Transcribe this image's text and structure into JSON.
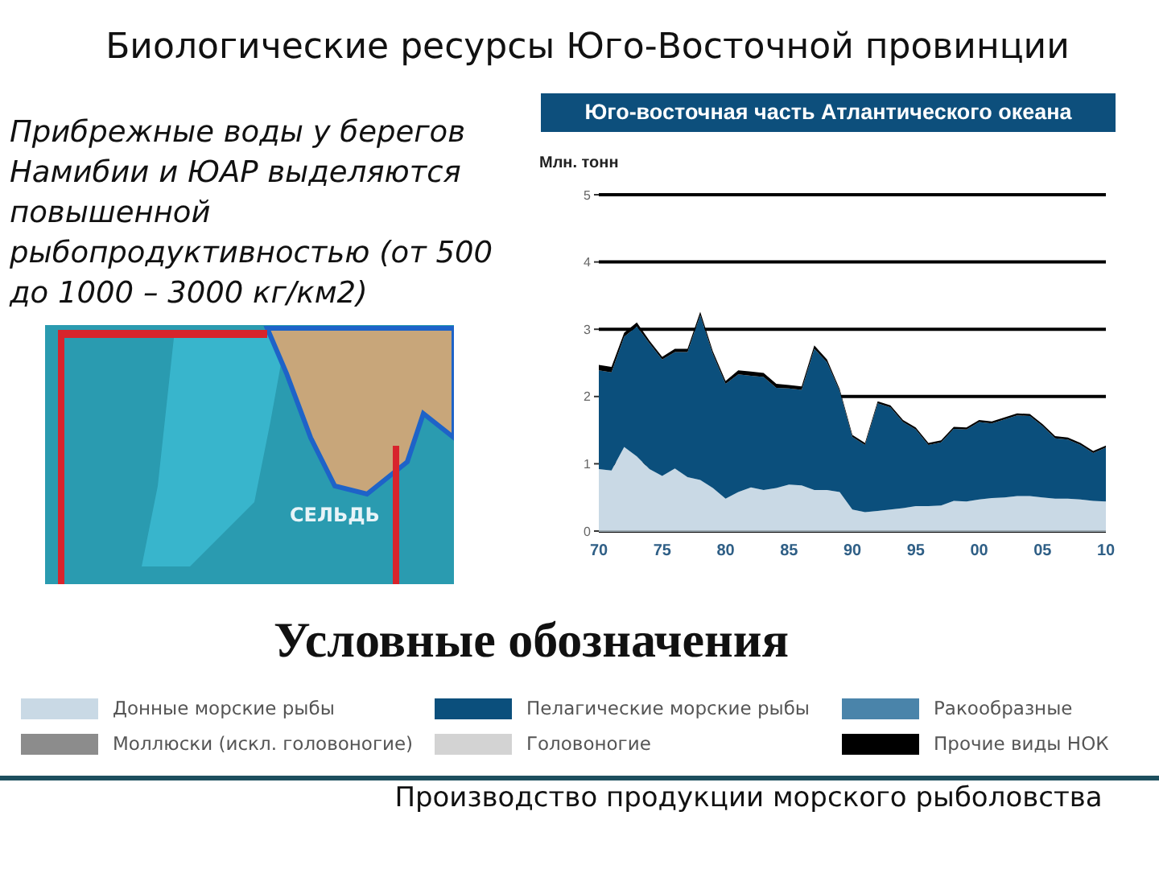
{
  "chart_data": {
    "type": "area",
    "stacked": true,
    "title": "Биологические ресурсы Юго-Восточной провинции",
    "subtitle": "Юго-восточная часть Атлантического океана",
    "ylabel": "Млн. тонн",
    "legend_title": "Условные обозначения",
    "annotations": [
      "Прибрежные воды у берегов Намибии и ЮАР выделяются повышенной рыбопродуктивностью (от 500 до 1000 – 3000 кг/км2)",
      "СЕЛЬДЬ",
      "Производство продукции морского рыболовства"
    ],
    "x": [
      1970,
      1971,
      1972,
      1973,
      1974,
      1975,
      1976,
      1977,
      1978,
      1979,
      1980,
      1981,
      1982,
      1983,
      1984,
      1985,
      1986,
      1987,
      1988,
      1989,
      1990,
      1991,
      1992,
      1993,
      1994,
      1995,
      1996,
      1997,
      1998,
      1999,
      2000,
      2001,
      2002,
      2003,
      2004,
      2005,
      2006,
      2007,
      2008,
      2009,
      2010
    ],
    "series": [
      {
        "name": "Донные морские рыбы",
        "color": "#c9d9e5",
        "values": [
          0.92,
          0.9,
          1.25,
          1.11,
          0.92,
          0.82,
          0.93,
          0.8,
          0.76,
          0.64,
          0.48,
          0.58,
          0.65,
          0.61,
          0.64,
          0.69,
          0.68,
          0.61,
          0.61,
          0.58,
          0.32,
          0.28,
          0.3,
          0.32,
          0.34,
          0.37,
          0.37,
          0.38,
          0.45,
          0.44,
          0.47,
          0.49,
          0.5,
          0.52,
          0.52,
          0.5,
          0.48,
          0.48,
          0.47,
          0.45,
          0.44
        ]
      },
      {
        "name": "Пелагические морские рыбы",
        "color": "#0b4f7c",
        "values": [
          1.47,
          1.46,
          1.64,
          1.93,
          1.87,
          1.73,
          1.73,
          1.86,
          2.45,
          1.99,
          1.71,
          1.75,
          1.66,
          1.68,
          1.49,
          1.43,
          1.42,
          2.1,
          1.9,
          1.5,
          1.08,
          1.0,
          1.6,
          1.52,
          1.28,
          1.14,
          0.91,
          0.94,
          1.07,
          1.07,
          1.15,
          1.11,
          1.16,
          1.2,
          1.19,
          1.06,
          0.9,
          0.88,
          0.81,
          0.71,
          0.8
        ]
      },
      {
        "name": "Ракообразные",
        "color": "#4a84aa",
        "values": [
          null,
          null,
          null,
          null,
          null,
          null,
          null,
          null,
          null,
          null,
          null,
          null,
          null,
          null,
          null,
          null,
          null,
          null,
          null,
          null,
          null,
          null,
          null,
          null,
          null,
          null,
          null,
          null,
          null,
          null,
          null,
          null,
          null,
          null,
          null,
          null,
          null,
          null,
          null,
          null,
          null
        ]
      },
      {
        "name": "Моллюски (искл. головоногие)",
        "color": "#8c8c8c",
        "values": [
          null,
          null,
          null,
          null,
          null,
          null,
          null,
          null,
          null,
          null,
          null,
          null,
          null,
          null,
          null,
          null,
          null,
          null,
          null,
          null,
          null,
          null,
          null,
          null,
          null,
          null,
          null,
          null,
          null,
          null,
          null,
          null,
          null,
          null,
          null,
          null,
          null,
          null,
          null,
          null,
          null
        ]
      },
      {
        "name": "Головоногие",
        "color": "#d3d3d3",
        "values": [
          null,
          null,
          null,
          null,
          null,
          null,
          null,
          null,
          null,
          null,
          null,
          null,
          null,
          null,
          null,
          null,
          null,
          null,
          null,
          null,
          null,
          null,
          null,
          null,
          null,
          null,
          null,
          null,
          null,
          null,
          null,
          null,
          null,
          null,
          null,
          null,
          null,
          null,
          null,
          null,
          null
        ]
      },
      {
        "name": "Прочие виды НОК",
        "color": "#000000",
        "values": [
          0.08,
          0.08,
          0.06,
          0.06,
          0.04,
          0.04,
          0.05,
          0.05,
          0.05,
          0.04,
          0.04,
          0.06,
          0.06,
          0.06,
          0.06,
          0.05,
          0.05,
          0.05,
          0.04,
          0.03,
          0.03,
          0.03,
          0.03,
          0.03,
          0.03,
          0.03,
          0.03,
          0.03,
          0.03,
          0.03,
          0.03,
          0.03,
          0.03,
          0.03,
          0.03,
          0.03,
          0.03,
          0.03,
          0.03,
          0.03,
          0.03
        ]
      }
    ],
    "xlim": [
      1970,
      2010
    ],
    "xticks": [
      {
        "value": 1970,
        "label": "70"
      },
      {
        "value": 1975,
        "label": "75"
      },
      {
        "value": 1980,
        "label": "80"
      },
      {
        "value": 1985,
        "label": "85"
      },
      {
        "value": 1990,
        "label": "90"
      },
      {
        "value": 1995,
        "label": "95"
      },
      {
        "value": 2000,
        "label": "00"
      },
      {
        "value": 2005,
        "label": "05"
      },
      {
        "value": 2010,
        "label": "10"
      }
    ],
    "ylim": [
      0,
      5
    ],
    "yticks": [
      0,
      1,
      2,
      3,
      4,
      5
    ],
    "grid": "y",
    "legend": "bottom"
  }
}
